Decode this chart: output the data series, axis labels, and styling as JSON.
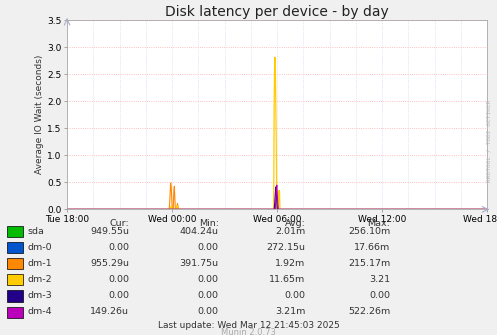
{
  "title": "Disk latency per device - by day",
  "ylabel": "Average IO Wait (seconds)",
  "background_color": "#f0f0f0",
  "plot_bg_color": "#ffffff",
  "ylim": [
    0,
    3.5
  ],
  "yticks": [
    0.0,
    0.5,
    1.0,
    1.5,
    2.0,
    2.5,
    3.0,
    3.5
  ],
  "xtick_labels": [
    "Tue 18:00",
    "Wed 00:00",
    "Wed 06:00",
    "Wed 12:00",
    "Wed 18:00"
  ],
  "grid_color_h": "#ffaaaa",
  "grid_color_v": "#ccccff",
  "series_colors": {
    "sda": "#00bb00",
    "dm-0": "#0055cc",
    "dm-1": "#ff8800",
    "dm-2": "#ffcc00",
    "dm-3": "#220088",
    "dm-4": "#bb00bb"
  },
  "legend_data": {
    "headers": [
      "Cur:",
      "Min:",
      "Avg:",
      "Max:"
    ],
    "rows": [
      [
        "sda",
        "949.55u",
        "404.24u",
        "2.01m",
        "256.10m"
      ],
      [
        "dm-0",
        "0.00",
        "0.00",
        "272.15u",
        "17.66m"
      ],
      [
        "dm-1",
        "955.29u",
        "391.75u",
        "1.92m",
        "215.17m"
      ],
      [
        "dm-2",
        "0.00",
        "0.00",
        "11.65m",
        "3.21"
      ],
      [
        "dm-3",
        "0.00",
        "0.00",
        "0.00",
        "0.00"
      ],
      [
        "dm-4",
        "149.26u",
        "0.00",
        "3.21m",
        "522.26m"
      ]
    ]
  },
  "footer": "Last update: Wed Mar 12 21:45:03 2025",
  "munin_version": "Munin 2.0.73",
  "watermark": "RRDTOOL / TOBI OETIKER"
}
